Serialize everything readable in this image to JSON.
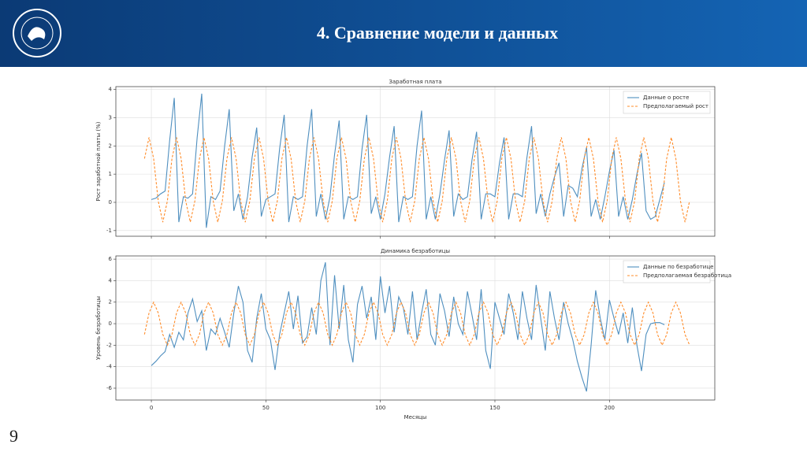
{
  "header": {
    "title": "4. Сравнение модели и данных"
  },
  "page_number": "9",
  "chart_data": [
    {
      "type": "line",
      "title": "Заработная плата",
      "ylabel": "Рост заработной платы (%)",
      "legend": "upper right",
      "grid": true,
      "show_xtick_labels": false,
      "xlim": [
        -15.5,
        246
      ],
      "xticks": [
        0,
        50,
        100,
        150,
        200
      ],
      "ylim": [
        -1.2,
        4.1
      ],
      "yticks": [
        -1,
        0,
        1,
        2,
        3,
        4
      ],
      "series": [
        {
          "name": "Данные о росте",
          "color": "#4f8fbf",
          "style": "solid",
          "x": [
            0,
            2,
            4,
            6,
            8,
            10,
            12,
            14,
            16,
            18,
            20,
            22,
            24,
            26,
            28,
            30,
            32,
            34,
            36,
            38,
            40,
            42,
            44,
            46,
            48,
            50,
            52,
            54,
            56,
            58,
            60,
            62,
            64,
            66,
            68,
            70,
            72,
            74,
            76,
            78,
            80,
            82,
            84,
            86,
            88,
            90,
            92,
            94,
            96,
            98,
            100,
            102,
            104,
            106,
            108,
            110,
            112,
            114,
            116,
            118,
            120,
            122,
            124,
            126,
            128,
            130,
            132,
            134,
            136,
            138,
            140,
            142,
            144,
            146,
            148,
            150,
            152,
            154,
            156,
            158,
            160,
            162,
            164,
            166,
            168,
            170,
            172,
            174,
            176,
            178,
            180,
            182,
            184,
            186,
            188,
            190,
            192,
            194,
            196,
            198,
            200,
            202,
            204,
            206,
            208,
            210,
            212,
            214,
            216,
            218,
            220,
            222,
            224
          ],
          "values": [
            0.1,
            0.15,
            0.3,
            0.4,
            2.2,
            3.7,
            -0.7,
            0.2,
            0.15,
            0.3,
            2.3,
            3.85,
            -0.9,
            0.2,
            0.1,
            0.4,
            2.0,
            3.3,
            -0.3,
            0.3,
            -0.6,
            0.2,
            1.6,
            2.65,
            -0.5,
            0.1,
            0.2,
            0.3,
            1.9,
            3.1,
            -0.7,
            0.2,
            0.1,
            0.2,
            2.0,
            3.3,
            -0.5,
            0.3,
            -0.6,
            0.2,
            1.7,
            2.9,
            -0.6,
            0.2,
            0.1,
            0.2,
            1.9,
            3.1,
            -0.4,
            0.2,
            -0.6,
            0.3,
            1.6,
            2.7,
            -0.7,
            0.2,
            0.1,
            0.2,
            2.0,
            3.25,
            -0.6,
            0.2,
            -0.6,
            0.3,
            1.5,
            2.55,
            -0.5,
            0.3,
            0.1,
            0.2,
            1.5,
            2.5,
            -0.6,
            0.3,
            0.3,
            0.2,
            1.4,
            2.3,
            -0.6,
            0.3,
            0.3,
            0.2,
            1.6,
            2.7,
            -0.4,
            0.3,
            -0.5,
            0.3,
            0.9,
            1.4,
            -0.5,
            0.6,
            0.5,
            0.2,
            1.2,
            1.95,
            -0.5,
            0.1,
            -0.6,
            0.2,
            1.1,
            1.85,
            -0.5,
            0.2,
            -0.6,
            0.1,
            1.0,
            1.75,
            -0.3,
            -0.6,
            -0.5,
            0.1,
            0.7
          ]
        },
        {
          "name": "Предполагаемый рост",
          "color": "#ff8c2a",
          "style": "dashed",
          "x": [
            -3,
            -1,
            1,
            3,
            5,
            7,
            9,
            11,
            13,
            15,
            17,
            19,
            21,
            23,
            25,
            27,
            29,
            31,
            33,
            35,
            37,
            39,
            41,
            43,
            45,
            47,
            49,
            51,
            53,
            55,
            57,
            59,
            61,
            63,
            65,
            67,
            69,
            71,
            73,
            75,
            77,
            79,
            81,
            83,
            85,
            87,
            89,
            91,
            93,
            95,
            97,
            99,
            101,
            103,
            105,
            107,
            109,
            111,
            113,
            115,
            117,
            119,
            121,
            123,
            125,
            127,
            129,
            131,
            133,
            135,
            137,
            139,
            141,
            143,
            145,
            147,
            149,
            151,
            153,
            155,
            157,
            159,
            161,
            163,
            165,
            167,
            169,
            171,
            173,
            175,
            177,
            179,
            181,
            183,
            185,
            187,
            189,
            191,
            193,
            195,
            197,
            199,
            201,
            203,
            205,
            207,
            209,
            211,
            213,
            215,
            217,
            219,
            221,
            223,
            225,
            227,
            229,
            231,
            233,
            235
          ],
          "values": [
            1.55,
            2.3,
            1.55,
            0.05,
            -0.7,
            0.05,
            1.55,
            2.3,
            1.55,
            0.05,
            -0.7,
            0.05,
            1.55,
            2.3,
            1.55,
            0.05,
            -0.7,
            0.05,
            1.55,
            2.3,
            1.55,
            0.05,
            -0.7,
            0.05,
            1.55,
            2.3,
            1.55,
            0.05,
            -0.7,
            0.05,
            1.55,
            2.3,
            1.55,
            0.05,
            -0.7,
            0.05,
            1.55,
            2.3,
            1.55,
            0.05,
            -0.7,
            0.05,
            1.55,
            2.3,
            1.55,
            0.05,
            -0.7,
            0.05,
            1.55,
            2.3,
            1.55,
            0.05,
            -0.7,
            0.05,
            1.55,
            2.3,
            1.55,
            0.05,
            -0.7,
            0.05,
            1.55,
            2.3,
            1.55,
            0.05,
            -0.7,
            0.05,
            1.55,
            2.3,
            1.55,
            0.05,
            -0.7,
            0.05,
            1.55,
            2.3,
            1.55,
            0.05,
            -0.7,
            0.05,
            1.55,
            2.3,
            1.55,
            0.05,
            -0.7,
            0.05,
            1.55,
            2.3,
            1.55,
            0.05,
            -0.7,
            0.05,
            1.55,
            2.3,
            1.55,
            0.05,
            -0.7,
            0.05,
            1.55,
            2.3,
            1.55,
            0.05,
            -0.7,
            0.05,
            1.55,
            2.3,
            1.55,
            0.05,
            -0.7,
            0.05,
            1.55,
            2.3,
            1.55,
            0.05,
            -0.7,
            0.05,
            1.55,
            2.3,
            1.55,
            0.05,
            -0.7,
            0.05
          ]
        }
      ]
    },
    {
      "type": "line",
      "title": "Динамика безработицы",
      "ylabel": "Уровень безработицы",
      "xlabel": "Месяцы",
      "legend": "upper right",
      "grid": true,
      "show_xtick_labels": true,
      "xlim": [
        -15.5,
        246
      ],
      "xticks": [
        0,
        50,
        100,
        150,
        200
      ],
      "ylim": [
        -7.1,
        6.3
      ],
      "yticks": [
        -6,
        -4,
        -2,
        0,
        2,
        4,
        6
      ],
      "series": [
        {
          "name": "Данные по безработице",
          "color": "#4f8fbf",
          "style": "solid",
          "x": [
            0,
            2,
            4,
            6,
            8,
            10,
            12,
            14,
            16,
            18,
            20,
            22,
            24,
            26,
            28,
            30,
            32,
            34,
            36,
            38,
            40,
            42,
            44,
            46,
            48,
            50,
            52,
            54,
            56,
            58,
            60,
            62,
            64,
            66,
            68,
            70,
            72,
            74,
            76,
            78,
            80,
            82,
            84,
            86,
            88,
            90,
            92,
            94,
            96,
            98,
            100,
            102,
            104,
            106,
            108,
            110,
            112,
            114,
            116,
            118,
            120,
            122,
            124,
            126,
            128,
            130,
            132,
            134,
            136,
            138,
            140,
            142,
            144,
            146,
            148,
            150,
            152,
            154,
            156,
            158,
            160,
            162,
            164,
            166,
            168,
            170,
            172,
            174,
            176,
            178,
            180,
            182,
            184,
            186,
            188,
            190,
            192,
            194,
            196,
            198,
            200,
            202,
            204,
            206,
            208,
            210,
            212,
            214,
            216,
            218,
            220,
            222,
            224
          ],
          "values": [
            -3.9,
            -3.5,
            -3.0,
            -2.6,
            -1.0,
            -2.2,
            -0.8,
            -1.5,
            1.0,
            2.3,
            0.2,
            1.2,
            -2.5,
            -0.5,
            -1.0,
            0.5,
            -0.8,
            -2.2,
            1.0,
            3.5,
            2.0,
            -2.5,
            -3.6,
            0.5,
            2.8,
            -0.5,
            -1.5,
            -4.3,
            -1.0,
            1.0,
            3.0,
            -0.5,
            2.6,
            -1.8,
            -1.2,
            1.5,
            -1.0,
            4.0,
            5.7,
            -2.0,
            4.5,
            -0.5,
            3.6,
            -1.5,
            -3.6,
            1.8,
            3.5,
            0.5,
            2.5,
            -1.5,
            4.4,
            1.0,
            3.5,
            -0.8,
            2.5,
            1.5,
            -1.0,
            3.0,
            -1.5,
            1.0,
            3.2,
            -1.0,
            -2.0,
            2.8,
            1.2,
            -1.2,
            2.5,
            0.0,
            -1.0,
            3.0,
            0.8,
            -1.5,
            3.2,
            -2.5,
            -4.2,
            2.0,
            0.5,
            -1.0,
            2.8,
            1.0,
            -1.5,
            3.0,
            0.5,
            -1.5,
            3.6,
            0.5,
            -2.5,
            3.0,
            0.5,
            -1.5,
            2.0,
            0.0,
            -1.5,
            -3.5,
            -5.0,
            -6.3,
            -2.0,
            3.1,
            0.5,
            -1.5,
            2.2,
            0.5,
            -1.0,
            1.0,
            -1.8,
            1.5,
            -2.0,
            -4.4,
            -1.0,
            0.0,
            0.1,
            0.1,
            -0.1
          ]
        },
        {
          "name": "Предполагаемая безработица",
          "color": "#ff8c2a",
          "style": "dashed",
          "x": [
            -3,
            -1,
            1,
            3,
            5,
            7,
            9,
            11,
            13,
            15,
            17,
            19,
            21,
            23,
            25,
            27,
            29,
            31,
            33,
            35,
            37,
            39,
            41,
            43,
            45,
            47,
            49,
            51,
            53,
            55,
            57,
            59,
            61,
            63,
            65,
            67,
            69,
            71,
            73,
            75,
            77,
            79,
            81,
            83,
            85,
            87,
            89,
            91,
            93,
            95,
            97,
            99,
            101,
            103,
            105,
            107,
            109,
            111,
            113,
            115,
            117,
            119,
            121,
            123,
            125,
            127,
            129,
            131,
            133,
            135,
            137,
            139,
            141,
            143,
            145,
            147,
            149,
            151,
            153,
            155,
            157,
            159,
            161,
            163,
            165,
            167,
            169,
            171,
            173,
            175,
            177,
            179,
            181,
            183,
            185,
            187,
            189,
            191,
            193,
            195,
            197,
            199,
            201,
            203,
            205,
            207,
            209,
            211,
            213,
            215,
            217,
            219,
            221,
            223,
            225,
            227,
            229,
            231,
            233,
            235
          ],
          "values": [
            -1,
            1,
            2,
            1,
            -1,
            -2,
            -1,
            1,
            2,
            1,
            -1,
            -2,
            -1,
            1,
            2,
            1,
            -1,
            -2,
            -1,
            1,
            2,
            1,
            -1,
            -2,
            -1,
            1,
            2,
            1,
            -1,
            -2,
            -1,
            1,
            2,
            1,
            -1,
            -2,
            -1,
            1,
            2,
            1,
            -1,
            -2,
            -1,
            1,
            2,
            1,
            -1,
            -2,
            -1,
            1,
            2,
            1,
            -1,
            -2,
            -1,
            1,
            2,
            1,
            -1,
            -2,
            -1,
            1,
            2,
            1,
            -1,
            -2,
            -1,
            1,
            2,
            1,
            -1,
            -2,
            -1,
            1,
            2,
            1,
            -1,
            -2,
            -1,
            1,
            2,
            1,
            -1,
            -2,
            -1,
            1,
            2,
            1,
            -1,
            -2,
            -1,
            1,
            2,
            1,
            -1,
            -2,
            -1,
            1,
            2,
            1,
            -1,
            -2,
            -1,
            1,
            2,
            1,
            -1,
            -2,
            -1,
            1,
            2,
            1,
            -1,
            -2,
            -1,
            1,
            2,
            1,
            -1,
            -2
          ]
        }
      ]
    }
  ]
}
